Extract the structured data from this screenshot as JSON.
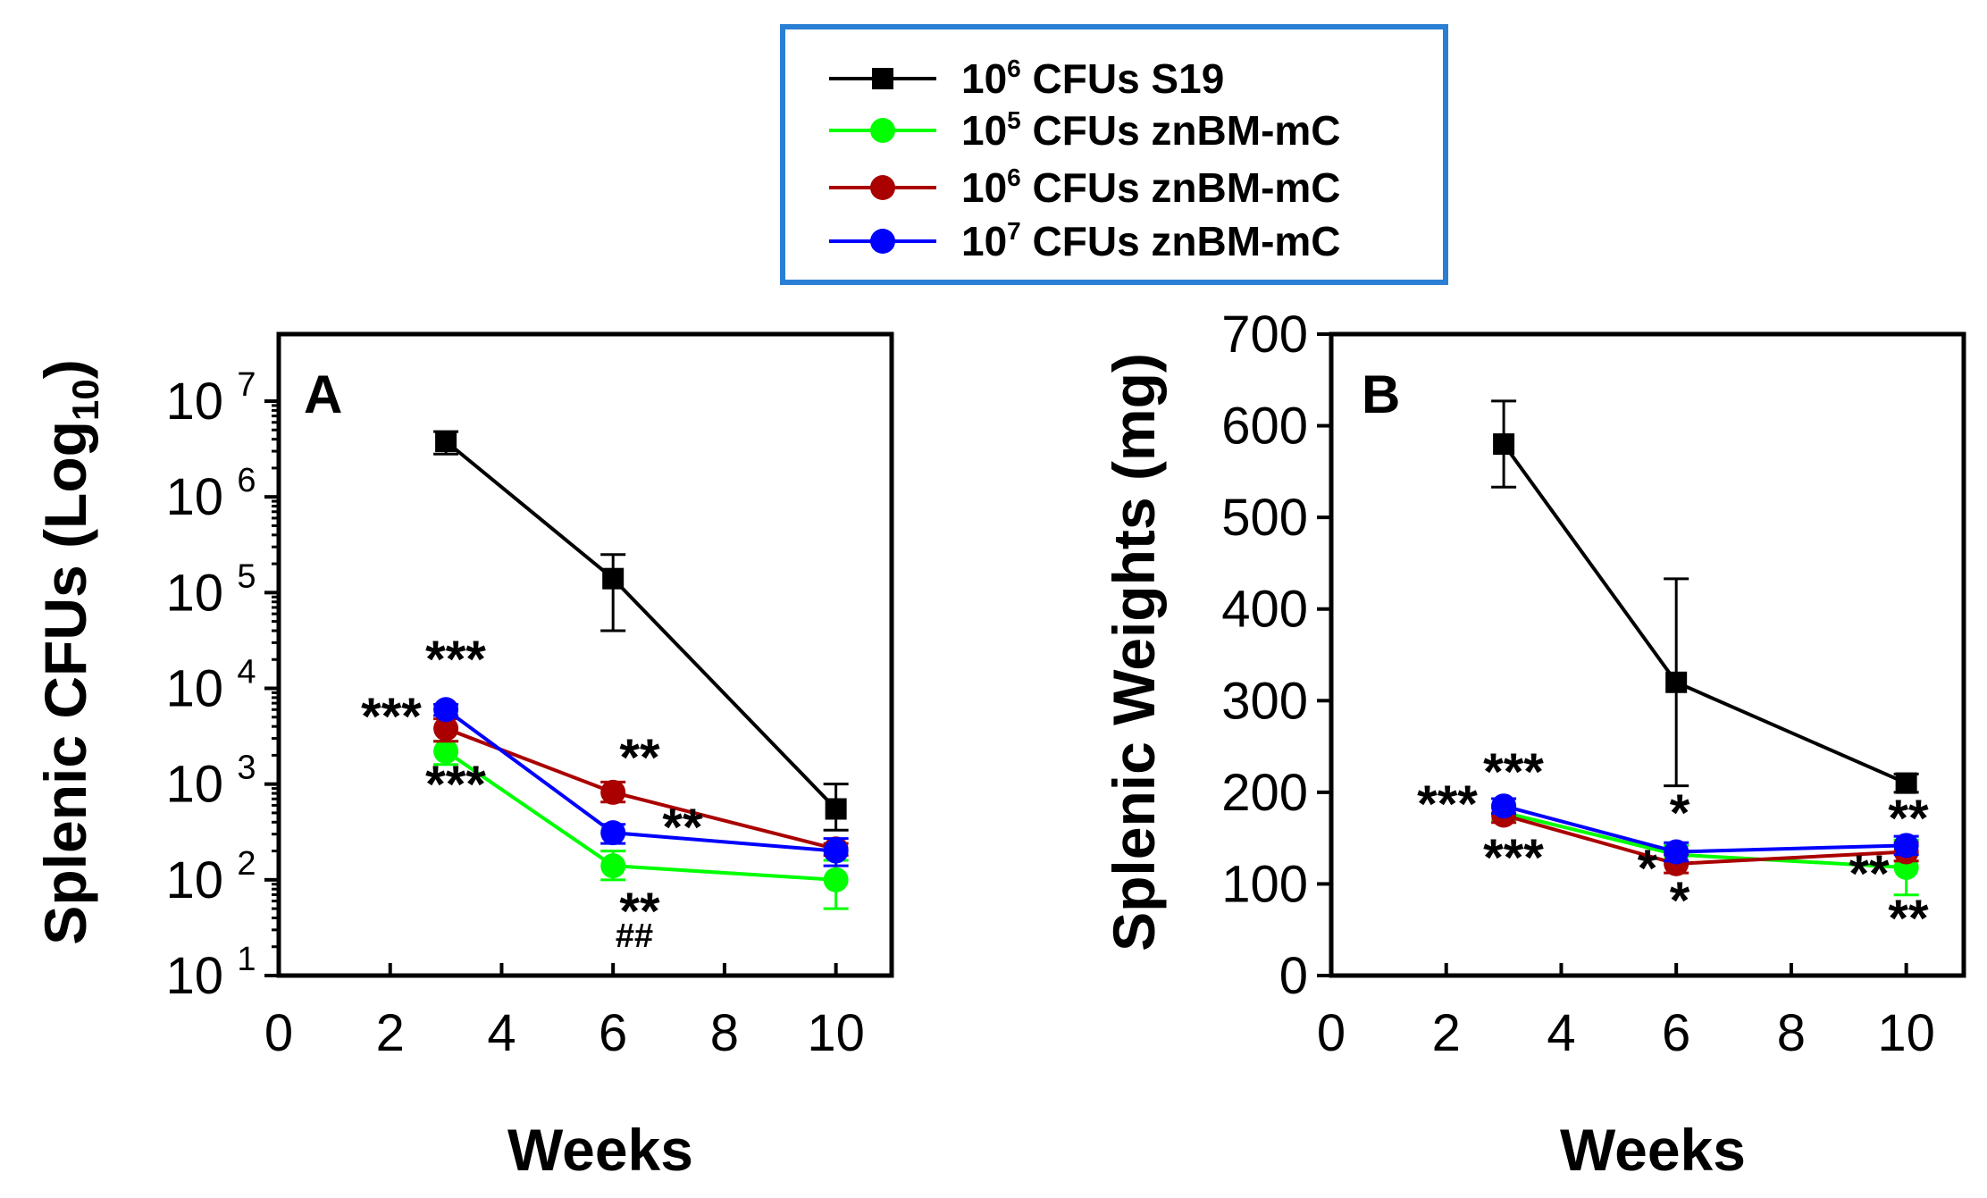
{
  "chart_data": [
    {
      "type": "line",
      "panel_label": "A",
      "xlabel": "Weeks",
      "ylabel": "Splenic CFUs (Log",
      "ylabel_sub": "10",
      "ylabel_close": ")",
      "xlim": [
        0,
        11
      ],
      "ylim_log10": [
        1,
        7.7
      ],
      "yscale": "log",
      "xticks": [
        0,
        2,
        4,
        6,
        8,
        10
      ],
      "yticks": [
        {
          "exp": 1,
          "base": "10",
          "sup": "1"
        },
        {
          "exp": 2,
          "base": "10",
          "sup": "2"
        },
        {
          "exp": 3,
          "base": "10",
          "sup": "3"
        },
        {
          "exp": 4,
          "base": "10",
          "sup": "4"
        },
        {
          "exp": 5,
          "base": "10",
          "sup": "5"
        },
        {
          "exp": 6,
          "base": "10",
          "sup": "6"
        },
        {
          "exp": 7,
          "base": "10",
          "sup": "7"
        }
      ],
      "x": [
        3,
        6,
        10
      ],
      "series": [
        {
          "name": "10^6 CFUs S19",
          "color": "#000000",
          "marker": "square",
          "values": [
            3800000,
            140000,
            550
          ],
          "err_low": [
            2800000,
            40000,
            330
          ],
          "err_high": [
            4800000,
            250000,
            1000
          ]
        },
        {
          "name": "10^5 CFUs znBM-mC",
          "color": "#00ff00",
          "marker": "circle",
          "values": [
            2200,
            140,
            100
          ],
          "err_low": [
            1600,
            100,
            50
          ],
          "err_high": [
            2800,
            200,
            160
          ]
        },
        {
          "name": "10^6 CFUs znBM-mC",
          "color": "#aa0000",
          "marker": "circle",
          "values": [
            3800,
            820,
            210
          ],
          "err_low": [
            2800,
            650,
            180
          ],
          "err_high": [
            4800,
            1050,
            240
          ]
        },
        {
          "name": "10^7 CFUs znBM-mC",
          "color": "#0000ff",
          "marker": "circle",
          "values": [
            6000,
            310,
            200
          ],
          "err_low": [
            5200,
            240,
            140
          ],
          "err_high": [
            6800,
            380,
            270
          ]
        }
      ],
      "annotations": [
        "***",
        "***",
        "***",
        "**",
        "**",
        "**",
        "##"
      ]
    },
    {
      "type": "line",
      "panel_label": "B",
      "xlabel": "Weeks",
      "ylabel": "Splenic Weights (mg)",
      "xlim": [
        0,
        11
      ],
      "ylim": [
        0,
        700
      ],
      "xticks": [
        0,
        2,
        4,
        6,
        8,
        10
      ],
      "yticks": [
        0,
        100,
        200,
        300,
        400,
        500,
        600,
        700
      ],
      "x": [
        3,
        6,
        10
      ],
      "series": [
        {
          "name": "10^6 CFUs S19",
          "color": "#000000",
          "marker": "square",
          "values": [
            580,
            320,
            210
          ],
          "err_low": [
            533,
            207,
            200
          ],
          "err_high": [
            627,
            433,
            220
          ]
        },
        {
          "name": "10^5 CFUs znBM-mC",
          "color": "#00ff00",
          "marker": "circle",
          "values": [
            178,
            132,
            118
          ],
          "err_low": [
            170,
            122,
            88
          ],
          "err_high": [
            186,
            142,
            148
          ]
        },
        {
          "name": "10^6 CFUs znBM-mC",
          "color": "#aa0000",
          "marker": "circle",
          "values": [
            175,
            122,
            135
          ],
          "err_low": [
            167,
            112,
            125
          ],
          "err_high": [
            183,
            132,
            145
          ]
        },
        {
          "name": "10^7 CFUs znBM-mC",
          "color": "#0000ff",
          "marker": "circle",
          "values": [
            185,
            135,
            142
          ],
          "err_low": [
            177,
            125,
            132
          ],
          "err_high": [
            193,
            145,
            152
          ]
        }
      ],
      "annotations": [
        "***",
        "***",
        "***",
        "*",
        "*",
        "*",
        "**",
        "**",
        "**"
      ]
    }
  ],
  "legend": {
    "border_color": "#2a7fd4",
    "entries": [
      {
        "base": "10",
        "sup": "6",
        "label": " CFUs S19",
        "color": "#000000",
        "marker": "square"
      },
      {
        "base": "10",
        "sup": "5",
        "label": " CFUs znBM-mC",
        "color": "#00ff00",
        "marker": "circle"
      },
      {
        "base": "10",
        "sup": "6",
        "label": " CFUs znBM-mC",
        "color": "#aa0000",
        "marker": "circle"
      },
      {
        "base": "10",
        "sup": "7",
        "label": " CFUs znBM-mC",
        "color": "#0000ff",
        "marker": "circle"
      }
    ]
  }
}
